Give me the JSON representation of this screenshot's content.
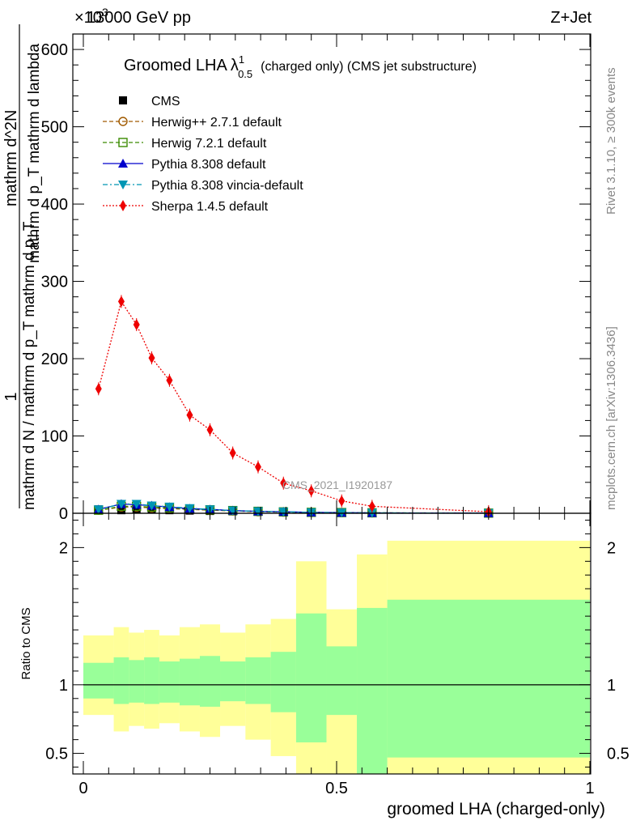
{
  "header": {
    "left": "13000 GeV pp",
    "right": "Z+Jet",
    "exponent": "×10",
    "exponent_power": "3"
  },
  "side_text": {
    "rivet": "Rivet 3.1.10, ≥ 300k events",
    "mcplots": "mcplots.cern.ch [arXiv:1306.3436]"
  },
  "watermark": "CMS_2021_I1920187",
  "colors": {
    "cms": "#000000",
    "herwigpp": "#a05a00",
    "herwig7": "#3a8a00",
    "pythia": "#0000cc",
    "vincia": "#0096b4",
    "sherpa": "#ee0000",
    "band_outer": "#ffff99",
    "band_inner": "#99ff99"
  },
  "chart_data": [
    {
      "type": "line",
      "title": "Groomed LHA",
      "title_symbol": "λ",
      "title_sup": "1",
      "title_sub": "0.5",
      "title_suffix": "(charged only) (CMS jet substructure)",
      "ylabel_line1_num": "1",
      "ylabel_line1_den": "mathrm d N / mathrm d p_T mathrm d p_T",
      "ylabel_line2_num": "mathrm d^2N",
      "ylabel_line2_den": "mathrm d p_T mathrm d lambda",
      "ylim": [
        0,
        620
      ],
      "yticks": [
        0,
        100,
        200,
        300,
        400,
        500,
        600
      ],
      "xlim": [
        0,
        1
      ],
      "legend_position": "top-left",
      "x": [
        0.03,
        0.075,
        0.105,
        0.135,
        0.17,
        0.21,
        0.25,
        0.295,
        0.345,
        0.395,
        0.45,
        0.51,
        0.57,
        0.8
      ],
      "series": [
        {
          "name": "CMS",
          "key": "cms",
          "marker": "square",
          "values": [
            5,
            4,
            5,
            5,
            4,
            3.5,
            3,
            2.5,
            2,
            1.5,
            1,
            0.8,
            0.5,
            0.3
          ]
        },
        {
          "name": "Herwig++ 2.7.1 default",
          "key": "herwigpp",
          "marker": "circle-open",
          "dash": "dashed",
          "values": [
            4,
            8,
            8,
            7,
            6,
            5,
            4,
            3,
            2,
            1.5,
            1,
            0.8,
            0.5,
            0.2
          ]
        },
        {
          "name": "Herwig 7.2.1 default",
          "key": "herwig7",
          "marker": "square-open",
          "dash": "dashed",
          "values": [
            4,
            9,
            9,
            8,
            7,
            5.5,
            4.5,
            3.5,
            2.5,
            1.8,
            1.2,
            0.9,
            0.6,
            0.2
          ]
        },
        {
          "name": "Pythia 8.308 default",
          "key": "pythia",
          "marker": "triangle-up",
          "dash": "solid",
          "values": [
            5,
            12,
            11,
            10,
            8,
            6,
            5,
            3.5,
            2.5,
            2,
            1.2,
            0.8,
            0.5,
            0.2
          ]
        },
        {
          "name": "Pythia 8.308 vincia-default",
          "key": "vincia",
          "marker": "triangle-down",
          "dash": "dashdot",
          "values": [
            5,
            12,
            12,
            10,
            8.5,
            6.5,
            5,
            3.5,
            2.5,
            2,
            1.2,
            0.8,
            0.5,
            0.2
          ]
        },
        {
          "name": "Sherpa 1.4.5 default",
          "key": "sherpa",
          "marker": "diamond",
          "dash": "dotted",
          "values": [
            161,
            274,
            244,
            201,
            172,
            127,
            108,
            78,
            60,
            39,
            29,
            16,
            9,
            2
          ]
        }
      ]
    },
    {
      "type": "area",
      "ylabel": "Ratio to CMS",
      "xlabel": "groomed LHA (charged-only)",
      "ylim": [
        0.35,
        2.25
      ],
      "yticks": [
        0.5,
        1,
        2
      ],
      "ytick_labels": [
        "0.5",
        "1",
        "2"
      ],
      "xticks": [
        0,
        0.5,
        1
      ],
      "xtick_labels": [
        "0",
        "0.5",
        "1"
      ],
      "reference": 1,
      "bins": [
        {
          "x0": 0.0,
          "x1": 0.06,
          "outer": [
            0.78,
            1.36
          ],
          "inner": [
            0.9,
            1.16
          ]
        },
        {
          "x0": 0.06,
          "x1": 0.09,
          "outer": [
            0.66,
            1.42
          ],
          "inner": [
            0.86,
            1.2
          ]
        },
        {
          "x0": 0.09,
          "x1": 0.12,
          "outer": [
            0.7,
            1.38
          ],
          "inner": [
            0.87,
            1.18
          ]
        },
        {
          "x0": 0.12,
          "x1": 0.15,
          "outer": [
            0.68,
            1.4
          ],
          "inner": [
            0.86,
            1.2
          ]
        },
        {
          "x0": 0.15,
          "x1": 0.19,
          "outer": [
            0.72,
            1.36
          ],
          "inner": [
            0.87,
            1.17
          ]
        },
        {
          "x0": 0.19,
          "x1": 0.23,
          "outer": [
            0.66,
            1.42
          ],
          "inner": [
            0.85,
            1.19
          ]
        },
        {
          "x0": 0.23,
          "x1": 0.27,
          "outer": [
            0.62,
            1.44
          ],
          "inner": [
            0.84,
            1.21
          ]
        },
        {
          "x0": 0.27,
          "x1": 0.32,
          "outer": [
            0.7,
            1.38
          ],
          "inner": [
            0.88,
            1.17
          ]
        },
        {
          "x0": 0.32,
          "x1": 0.37,
          "outer": [
            0.6,
            1.44
          ],
          "inner": [
            0.86,
            1.2
          ]
        },
        {
          "x0": 0.37,
          "x1": 0.42,
          "outer": [
            0.48,
            1.48
          ],
          "inner": [
            0.8,
            1.24
          ]
        },
        {
          "x0": 0.42,
          "x1": 0.48,
          "outer": [
            0.35,
            1.9
          ],
          "inner": [
            0.58,
            1.52
          ]
        },
        {
          "x0": 0.48,
          "x1": 0.54,
          "outer": [
            0.35,
            1.55
          ],
          "inner": [
            0.78,
            1.28
          ]
        },
        {
          "x0": 0.54,
          "x1": 0.6,
          "outer": [
            0.48,
            1.95
          ],
          "inner": [
            0.35,
            1.56
          ]
        },
        {
          "x0": 0.6,
          "x1": 1.0,
          "outer": [
            0.35,
            2.05
          ],
          "inner": [
            0.47,
            1.62
          ]
        }
      ]
    }
  ]
}
